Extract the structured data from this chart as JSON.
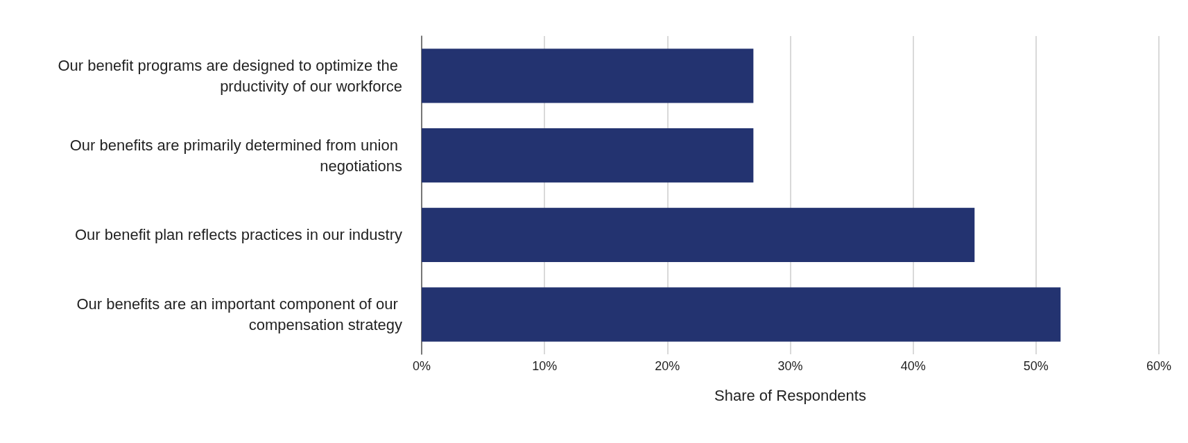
{
  "chart_data": {
    "type": "bar",
    "orientation": "horizontal",
    "xlabel": "Share of Respondents",
    "categories": [
      "Our benefit programs are designed to optimize the prductivity of our workforce",
      "Our benefits are primarily determined from union negotiations",
      "Our benefit plan reflects practices in our industry",
      "Our benefits are an important component of our compensation strategy"
    ],
    "values": [
      27,
      27,
      45,
      52
    ],
    "color": "#233370",
    "xlim": [
      0,
      60
    ],
    "xticks": [
      {
        "value": 0,
        "label": "0%"
      },
      {
        "value": 10,
        "label": "10%"
      },
      {
        "value": 20,
        "label": "20%"
      },
      {
        "value": 30,
        "label": "30%"
      },
      {
        "value": 40,
        "label": "40%"
      },
      {
        "value": 50,
        "label": "50%"
      },
      {
        "value": 60,
        "label": "60%"
      }
    ],
    "grid": "x"
  }
}
